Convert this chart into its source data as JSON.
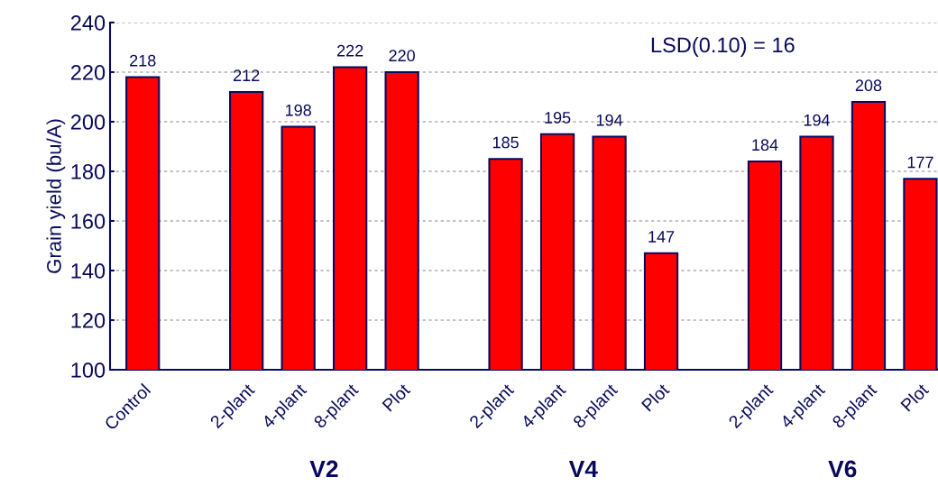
{
  "chart_data": {
    "type": "bar",
    "ylabel": "Grain yield (bu/A)",
    "categories": [
      "Control",
      null,
      "2-plant",
      "4-plant",
      "8-plant",
      "Plot",
      null,
      "2-plant",
      "4-plant",
      "8-plant",
      "Plot",
      null,
      "2-plant",
      "4-plant",
      "8-plant",
      "Plot"
    ],
    "values": [
      218,
      null,
      212,
      198,
      222,
      220,
      null,
      185,
      195,
      194,
      147,
      null,
      184,
      194,
      208,
      177
    ],
    "color": "#ff0000",
    "ylim": [
      100,
      240
    ],
    "yticks": [
      100,
      120,
      140,
      160,
      180,
      200,
      220,
      240
    ],
    "grid": "y",
    "data_labels": true,
    "annotations": [
      "LSD(0.10) = 16",
      "V2",
      "V4",
      "V6"
    ]
  }
}
